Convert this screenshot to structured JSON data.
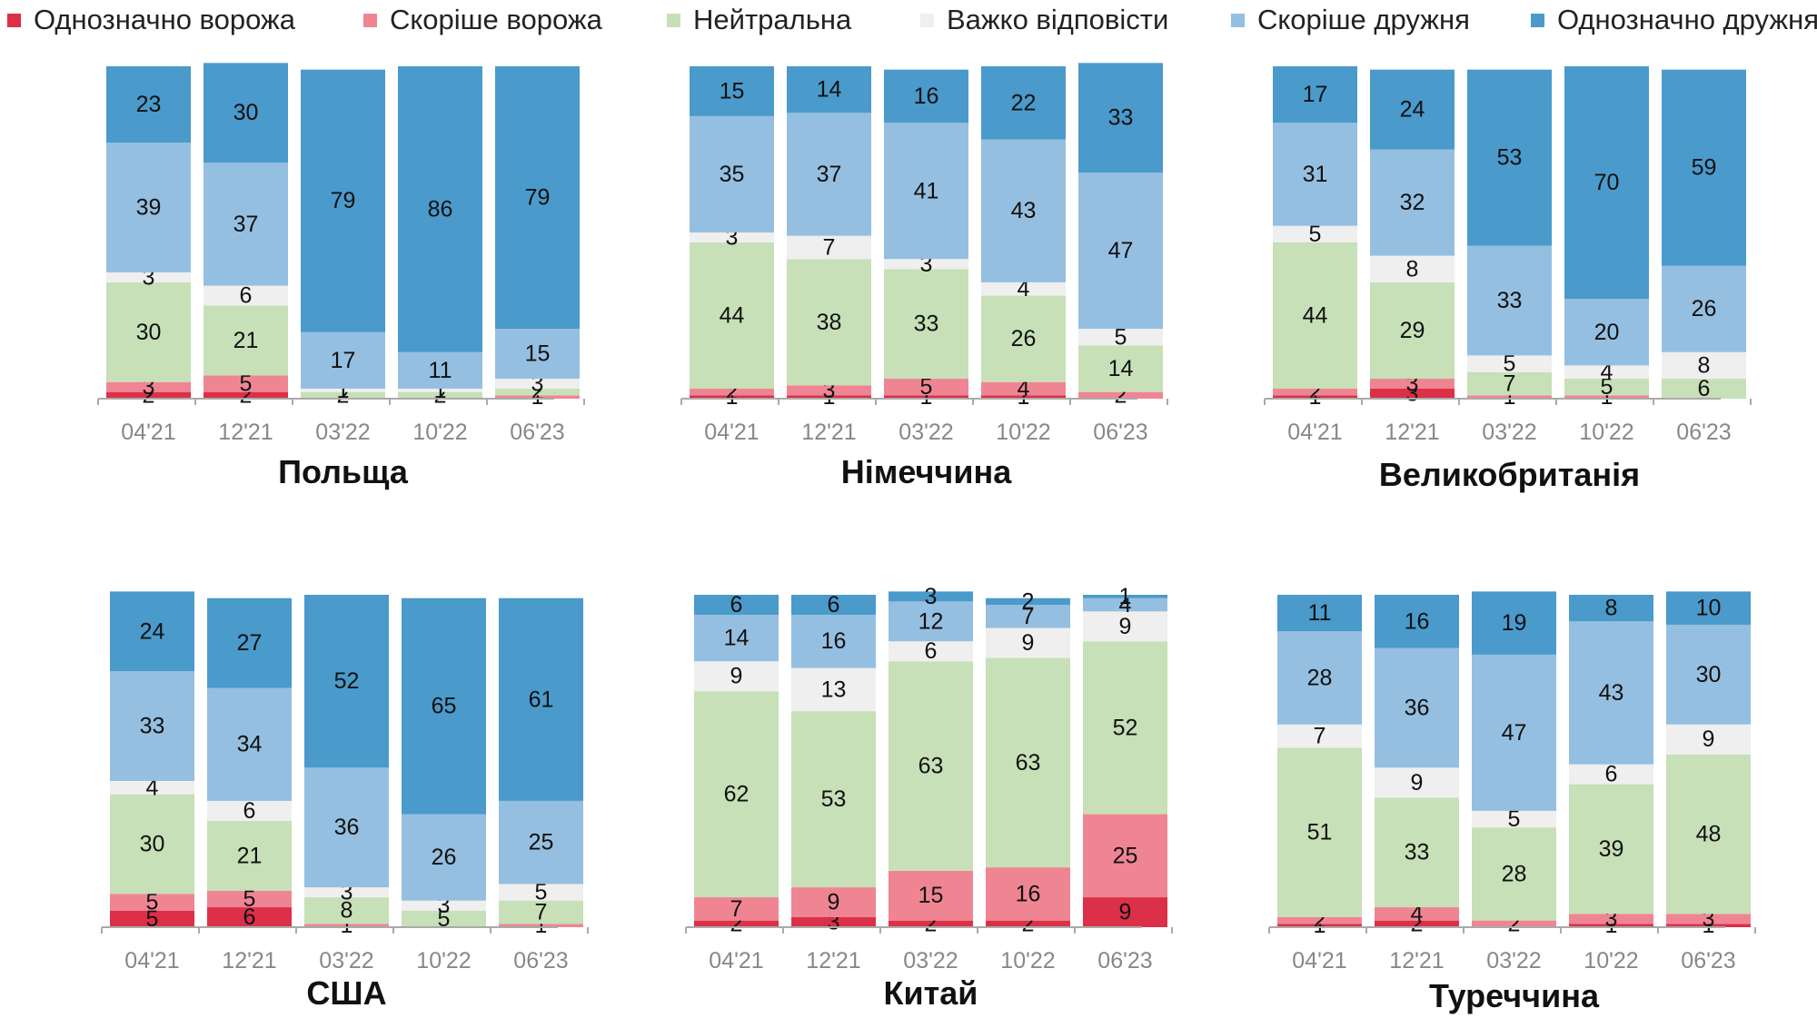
{
  "legend": [
    {
      "label": "Однозначно ворожа",
      "color": "#dc2f48"
    },
    {
      "label": "Скоріше ворожа",
      "color": "#ef8593"
    },
    {
      "label": "Нейтральна",
      "color": "#c7e0b7"
    },
    {
      "label": "Важко відповісти",
      "color": "#efefef"
    },
    {
      "label": "Скоріше дружня",
      "color": "#95bfe0"
    },
    {
      "label": "Однозначно дружня",
      "color": "#4a9acb"
    }
  ],
  "chart_data": [
    {
      "type": "bar",
      "stacked": true,
      "title": "Польща",
      "categories": [
        "04'21",
        "12'21",
        "03'22",
        "10'22",
        "06'23"
      ],
      "series": [
        {
          "name": "Однозначно ворожа",
          "values": [
            2,
            2,
            0,
            0,
            0
          ]
        },
        {
          "name": "Скоріше ворожа",
          "values": [
            3,
            5,
            0,
            0,
            1
          ]
        },
        {
          "name": "Нейтральна",
          "values": [
            30,
            21,
            2,
            2,
            2
          ]
        },
        {
          "name": "Важко відповісти",
          "values": [
            3,
            6,
            1,
            1,
            3
          ]
        },
        {
          "name": "Скоріше дружня",
          "values": [
            39,
            37,
            17,
            11,
            15
          ]
        },
        {
          "name": "Однозначно дружня",
          "values": [
            23,
            30,
            79,
            86,
            79
          ]
        }
      ],
      "ylim": [
        0,
        100
      ]
    },
    {
      "type": "bar",
      "stacked": true,
      "title": "Німеччина",
      "categories": [
        "04'21",
        "12'21",
        "03'22",
        "10'22",
        "06'23"
      ],
      "series": [
        {
          "name": "Однозначно ворожа",
          "values": [
            1,
            1,
            1,
            1,
            0
          ]
        },
        {
          "name": "Скоріше ворожа",
          "values": [
            2,
            3,
            5,
            4,
            2
          ]
        },
        {
          "name": "Нейтральна",
          "values": [
            44,
            38,
            33,
            26,
            14
          ]
        },
        {
          "name": "Важко відповісти",
          "values": [
            3,
            7,
            3,
            4,
            5
          ]
        },
        {
          "name": "Скоріше дружня",
          "values": [
            35,
            37,
            41,
            43,
            47
          ]
        },
        {
          "name": "Однозначно дружня",
          "values": [
            15,
            14,
            16,
            22,
            33
          ]
        }
      ],
      "ylim": [
        0,
        100
      ]
    },
    {
      "type": "bar",
      "stacked": true,
      "title": "Великобританія",
      "categories": [
        "04'21",
        "12'21",
        "03'22",
        "10'22",
        "06'23"
      ],
      "series": [
        {
          "name": "Однозначно ворожа",
          "values": [
            1,
            3,
            0,
            0,
            0
          ]
        },
        {
          "name": "Скоріше ворожа",
          "values": [
            2,
            3,
            1,
            1,
            0
          ]
        },
        {
          "name": "Нейтральна",
          "values": [
            44,
            29,
            7,
            5,
            6
          ]
        },
        {
          "name": "Важко відповісти",
          "values": [
            5,
            8,
            5,
            4,
            8
          ]
        },
        {
          "name": "Скоріше дружня",
          "values": [
            31,
            32,
            33,
            20,
            26
          ]
        },
        {
          "name": "Однозначно дружня",
          "values": [
            17,
            24,
            53,
            70,
            59
          ]
        }
      ],
      "ylim": [
        0,
        100
      ]
    },
    {
      "type": "bar",
      "stacked": true,
      "title": "США",
      "categories": [
        "04'21",
        "12'21",
        "03'22",
        "10'22",
        "06'23"
      ],
      "series": [
        {
          "name": "Однозначно ворожа",
          "values": [
            5,
            6,
            0,
            0,
            0
          ]
        },
        {
          "name": "Скоріше ворожа",
          "values": [
            5,
            5,
            1,
            0,
            1
          ]
        },
        {
          "name": "Нейтральна",
          "values": [
            30,
            21,
            8,
            5,
            7
          ]
        },
        {
          "name": "Важко відповісти",
          "values": [
            4,
            6,
            3,
            3,
            5
          ]
        },
        {
          "name": "Скоріше дружня",
          "values": [
            33,
            34,
            36,
            26,
            25
          ]
        },
        {
          "name": "Однозначно дружня",
          "values": [
            24,
            27,
            52,
            65,
            61
          ]
        }
      ],
      "ylim": [
        0,
        100
      ]
    },
    {
      "type": "bar",
      "stacked": true,
      "title": "Китай",
      "categories": [
        "04'21",
        "12'21",
        "03'22",
        "10'22",
        "06'23"
      ],
      "series": [
        {
          "name": "Однозначно ворожа",
          "values": [
            2,
            3,
            2,
            2,
            9
          ]
        },
        {
          "name": "Скоріше ворожа",
          "values": [
            7,
            9,
            15,
            16,
            25
          ]
        },
        {
          "name": "Нейтральна",
          "values": [
            62,
            53,
            63,
            63,
            52
          ]
        },
        {
          "name": "Важко відповісти",
          "values": [
            9,
            13,
            6,
            9,
            9
          ]
        },
        {
          "name": "Скоріше дружня",
          "values": [
            14,
            16,
            12,
            7,
            4
          ]
        },
        {
          "name": "Однозначно дружня",
          "values": [
            6,
            6,
            3,
            2,
            1
          ]
        }
      ],
      "ylim": [
        0,
        100
      ]
    },
    {
      "type": "bar",
      "stacked": true,
      "title": "Туреччина",
      "categories": [
        "04'21",
        "12'21",
        "03'22",
        "10'22",
        "06'23"
      ],
      "series": [
        {
          "name": "Однозначно ворожа",
          "values": [
            1,
            2,
            0,
            1,
            1
          ]
        },
        {
          "name": "Скоріше ворожа",
          "values": [
            2,
            4,
            2,
            3,
            3
          ]
        },
        {
          "name": "Нейтральна",
          "values": [
            51,
            33,
            28,
            39,
            48
          ]
        },
        {
          "name": "Важко відповісти",
          "values": [
            7,
            9,
            5,
            6,
            9
          ]
        },
        {
          "name": "Скоріше дружня",
          "values": [
            28,
            36,
            47,
            43,
            30
          ]
        },
        {
          "name": "Однозначно дружня",
          "values": [
            11,
            16,
            19,
            8,
            10
          ]
        }
      ],
      "ylim": [
        0,
        100
      ]
    }
  ]
}
